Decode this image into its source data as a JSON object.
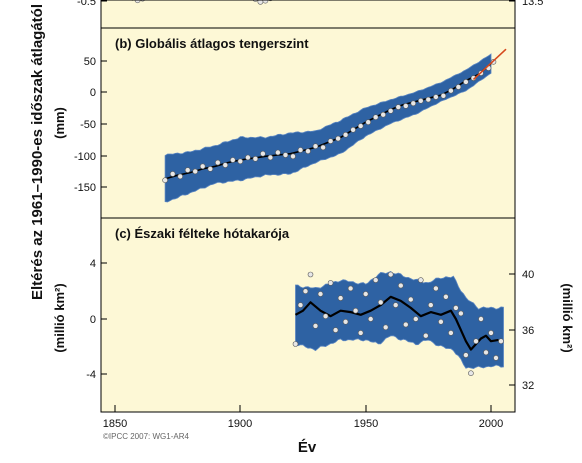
{
  "figure": {
    "shared_ylabel": "Eltérés az 1961–1990-es időszak átlagától",
    "xlabel": "Év",
    "credit": "©IPCC 2007: WG1-AR4",
    "x_ticks": [
      "1850",
      "1900",
      "1950",
      "2000"
    ],
    "colors": {
      "panel_bg": "#fdf8d6",
      "band": "#2e62a3",
      "band_edge": "#5b86c2",
      "smooth": "#000000",
      "points_fill": "#e7e7e7",
      "trend": "#d6491d"
    }
  },
  "panels": {
    "a": {
      "left_ticks": [
        "-0.5"
      ],
      "right_ticks": [
        "13.5"
      ]
    },
    "b": {
      "title": "(b) Globális átlagos tengerszint",
      "ylabel": "(mm)",
      "left_ticks": [
        "50",
        "0",
        "-50",
        "-100",
        "-150"
      ]
    },
    "c": {
      "title": "(c) Északi félteke hótakarója",
      "ylabel_left": "(millió km²)",
      "ylabel_right": "(millió km²)",
      "left_ticks": [
        "4",
        "0",
        "-4"
      ],
      "right_ticks": [
        "40",
        "36",
        "32"
      ]
    }
  },
  "chart_data": [
    {
      "panel": "a",
      "type": "scatter",
      "title": "",
      "note": "Only the bottom strip of this panel is visible in the screenshot.",
      "x": [
        1857,
        1859,
        1861,
        1906,
        1908,
        1910,
        1912
      ],
      "y": [
        -0.42,
        -0.48,
        -0.44,
        -0.45,
        -0.52,
        -0.49,
        -0.43
      ],
      "ylim": [
        -0.55,
        -0.38
      ],
      "y_right_ticks": [
        13.5
      ]
    },
    {
      "panel": "b",
      "type": "line",
      "title": "(b) Globális átlagos tengerszint",
      "xlabel": "Év",
      "ylabel": "(mm)",
      "xlim": [
        1845,
        2006
      ],
      "ylim": [
        -190,
        75
      ],
      "grid": false,
      "series": [
        {
          "role": "uncertainty_band",
          "x": [
            1870,
            1880,
            1890,
            1900,
            1910,
            1920,
            1930,
            1940,
            1950,
            1960,
            1970,
            1980,
            1990,
            2000
          ],
          "y_low": [
            -175,
            -160,
            -145,
            -140,
            -132,
            -130,
            -112,
            -98,
            -70,
            -50,
            -35,
            -15,
            2,
            30
          ],
          "y_high": [
            -100,
            -95,
            -85,
            -72,
            -72,
            -65,
            -62,
            -45,
            -25,
            -12,
            0,
            15,
            35,
            60
          ]
        },
        {
          "role": "smoothed",
          "x": [
            1870,
            1875,
            1880,
            1885,
            1890,
            1895,
            1900,
            1905,
            1910,
            1915,
            1920,
            1925,
            1930,
            1935,
            1940,
            1945,
            1950,
            1955,
            1960,
            1965,
            1970,
            1975,
            1980,
            1985,
            1990,
            1995,
            2000
          ],
          "y": [
            -138,
            -132,
            -128,
            -122,
            -118,
            -112,
            -108,
            -105,
            -102,
            -100,
            -98,
            -93,
            -88,
            -80,
            -72,
            -60,
            -48,
            -38,
            -28,
            -20,
            -15,
            -10,
            -5,
            5,
            18,
            28,
            45
          ]
        },
        {
          "role": "annual_points",
          "x": [
            1870,
            1873,
            1876,
            1879,
            1882,
            1885,
            1888,
            1891,
            1894,
            1897,
            1900,
            1903,
            1906,
            1909,
            1912,
            1915,
            1918,
            1921,
            1924,
            1927,
            1930,
            1933,
            1936,
            1939,
            1942,
            1945,
            1948,
            1951,
            1954,
            1957,
            1960,
            1963,
            1966,
            1969,
            1972,
            1975,
            1978,
            1981,
            1984,
            1987,
            1990,
            1993,
            1996,
            1999,
            2001
          ],
          "y": [
            -140,
            -130,
            -134,
            -124,
            -126,
            -118,
            -122,
            -112,
            -116,
            -108,
            -110,
            -104,
            -106,
            -98,
            -104,
            -96,
            -100,
            -102,
            -92,
            -94,
            -86,
            -88,
            -78,
            -74,
            -68,
            -60,
            -54,
            -48,
            -40,
            -36,
            -30,
            -24,
            -22,
            -18,
            -14,
            -12,
            -8,
            -6,
            2,
            8,
            16,
            22,
            30,
            38,
            48
          ]
        },
        {
          "role": "satellite_trend",
          "x": [
            1993,
            2006
          ],
          "y": [
            20,
            68
          ]
        }
      ]
    },
    {
      "panel": "c",
      "type": "line",
      "title": "(c) Északi félteke hótakarója",
      "xlabel": "Év",
      "ylabel": "(millió km²)",
      "ylabel_right": "(millió km²)",
      "xlim": [
        1845,
        2006
      ],
      "ylim": [
        -7,
        7
      ],
      "y_right_ticks": [
        40,
        36,
        32
      ],
      "grid": false,
      "series": [
        {
          "role": "uncertainty_band",
          "x": [
            1922,
            1930,
            1940,
            1950,
            1955,
            1960,
            1970,
            1975,
            1980,
            1985,
            1990,
            1995,
            2000,
            2005
          ],
          "y_low": [
            -1.8,
            -2.2,
            -1.5,
            -1.5,
            -1.8,
            -1.2,
            -1.8,
            -1.5,
            -2.0,
            -2.2,
            -3.5,
            -3.5,
            -3.4,
            -3.4
          ],
          "y_high": [
            2.4,
            2.2,
            2.8,
            2.5,
            3.2,
            3.4,
            2.8,
            2.6,
            3.0,
            3.0,
            1.5,
            0.8,
            0.8,
            0.8
          ]
        },
        {
          "role": "smoothed",
          "x": [
            1922,
            1925,
            1928,
            1932,
            1936,
            1940,
            1944,
            1948,
            1952,
            1956,
            1960,
            1964,
            1968,
            1972,
            1976,
            1980,
            1984,
            1986,
            1988,
            1990,
            1992,
            1994,
            1996,
            1998,
            2000,
            2003
          ],
          "y": [
            0.3,
            0.6,
            1.2,
            0.6,
            0.2,
            0.6,
            0.5,
            0.3,
            0.6,
            1.0,
            1.6,
            1.3,
            0.8,
            0.2,
            0.5,
            0.3,
            0.6,
            0.0,
            -0.8,
            -1.6,
            -2.2,
            -1.8,
            -1.4,
            -1.2,
            -1.6,
            -1.5
          ]
        },
        {
          "role": "annual_points",
          "x": [
            1922,
            1924,
            1926,
            1928,
            1930,
            1932,
            1934,
            1936,
            1938,
            1940,
            1942,
            1944,
            1946,
            1948,
            1950,
            1952,
            1954,
            1956,
            1958,
            1960,
            1962,
            1964,
            1966,
            1968,
            1970,
            1972,
            1974,
            1976,
            1978,
            1980,
            1982,
            1984,
            1986,
            1988,
            1990,
            1992,
            1994,
            1996,
            1998,
            2000,
            2002,
            2004
          ],
          "y": [
            -1.8,
            1.0,
            2.0,
            3.2,
            -0.5,
            1.8,
            0.2,
            2.6,
            -0.8,
            1.5,
            -0.2,
            2.2,
            0.6,
            -1.0,
            1.8,
            0.0,
            2.8,
            1.2,
            -0.6,
            3.2,
            1.0,
            2.4,
            -0.4,
            1.4,
            0.0,
            2.8,
            -1.2,
            1.0,
            2.2,
            -0.2,
            1.6,
            -1.0,
            0.8,
            0.4,
            -2.6,
            -3.9,
            -1.6,
            0.0,
            -2.4,
            -1.0,
            -2.8,
            -1.6
          ]
        }
      ]
    }
  ]
}
